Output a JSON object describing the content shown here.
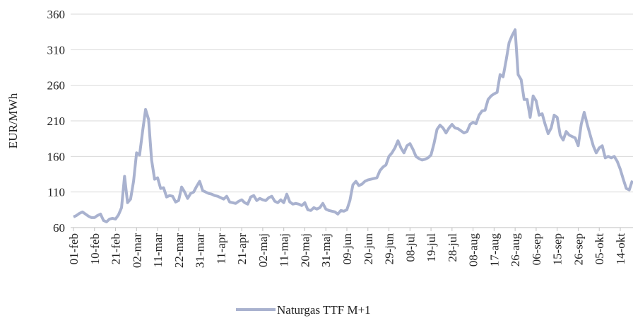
{
  "chart_data": {
    "type": "line",
    "ylabel": "EUR/MWh",
    "ylim": [
      60,
      360
    ],
    "yticks": [
      60,
      110,
      160,
      210,
      260,
      310,
      360
    ],
    "grid": true,
    "legend": "bottom",
    "categories": [
      "01-feb",
      null,
      null,
      null,
      null,
      null,
      null,
      "10-feb",
      null,
      null,
      null,
      null,
      null,
      null,
      "21-feb",
      null,
      null,
      null,
      null,
      null,
      null,
      "02-mar",
      null,
      null,
      null,
      null,
      null,
      null,
      "11-mar",
      null,
      null,
      null,
      null,
      null,
      null,
      "22-mar",
      null,
      null,
      null,
      null,
      null,
      null,
      "31-mar",
      null,
      null,
      null,
      null,
      null,
      null,
      "11-apr",
      null,
      null,
      null,
      null,
      null,
      null,
      "21-apr",
      null,
      null,
      null,
      null,
      null,
      null,
      "02-maj",
      null,
      null,
      null,
      null,
      null,
      null,
      "11-maj",
      null,
      null,
      null,
      null,
      null,
      null,
      "20-maj",
      null,
      null,
      null,
      null,
      null,
      null,
      "31-maj",
      null,
      null,
      null,
      null,
      null,
      null,
      "09-jun",
      null,
      null,
      null,
      null,
      null,
      null,
      "20-jun",
      null,
      null,
      null,
      null,
      null,
      null,
      "29-jun",
      null,
      null,
      null,
      null,
      null,
      null,
      "08-jul",
      null,
      null,
      null,
      null,
      null,
      null,
      "19-jul",
      null,
      null,
      null,
      null,
      null,
      null,
      "28-jul",
      null,
      null,
      null,
      null,
      null,
      null,
      "08-aug",
      null,
      null,
      null,
      null,
      null,
      null,
      "17-aug",
      null,
      null,
      null,
      null,
      null,
      null,
      "26-aug",
      null,
      null,
      null,
      null,
      null,
      null,
      "06-sep",
      null,
      null,
      null,
      null,
      null,
      null,
      "15-sep",
      null,
      null,
      null,
      null,
      null,
      null,
      "26-sep",
      null,
      null,
      null,
      null,
      null,
      null,
      "05-okt",
      null,
      null,
      null,
      null,
      null,
      null,
      "14-okt",
      null,
      null,
      null,
      null
    ],
    "series": [
      {
        "name": "Naturgas TTF M+1",
        "color": "#a9b2cf",
        "values": [
          75,
          77,
          80,
          82,
          79,
          76,
          74,
          74,
          77,
          79,
          70,
          68,
          72,
          73,
          72,
          78,
          88,
          132,
          95,
          100,
          125,
          165,
          162,
          195,
          226,
          212,
          155,
          128,
          130,
          115,
          116,
          103,
          105,
          104,
          96,
          98,
          117,
          110,
          101,
          108,
          110,
          118,
          125,
          112,
          110,
          108,
          107,
          105,
          104,
          102,
          100,
          104,
          96,
          95,
          94,
          97,
          99,
          95,
          93,
          103,
          105,
          98,
          101,
          99,
          98,
          102,
          104,
          97,
          95,
          99,
          95,
          107,
          96,
          93,
          94,
          93,
          91,
          95,
          85,
          84,
          88,
          86,
          88,
          94,
          86,
          84,
          83,
          82,
          79,
          84,
          83,
          85,
          98,
          120,
          125,
          119,
          121,
          125,
          127,
          128,
          129,
          130,
          140,
          145,
          148,
          160,
          165,
          172,
          182,
          172,
          165,
          175,
          178,
          170,
          160,
          157,
          155,
          156,
          158,
          162,
          178,
          198,
          204,
          200,
          193,
          200,
          205,
          200,
          199,
          196,
          193,
          195,
          205,
          208,
          206,
          218,
          224,
          225,
          240,
          245,
          248,
          250,
          275,
          272,
          295,
          320,
          330,
          338,
          275,
          268,
          240,
          240,
          215,
          245,
          238,
          218,
          220,
          205,
          192,
          200,
          218,
          215,
          190,
          183,
          195,
          190,
          188,
          186,
          175,
          205,
          222,
          205,
          190,
          175,
          165,
          172,
          175,
          158,
          160,
          158,
          160,
          153,
          142,
          128,
          115,
          113,
          126
        ]
      }
    ]
  }
}
